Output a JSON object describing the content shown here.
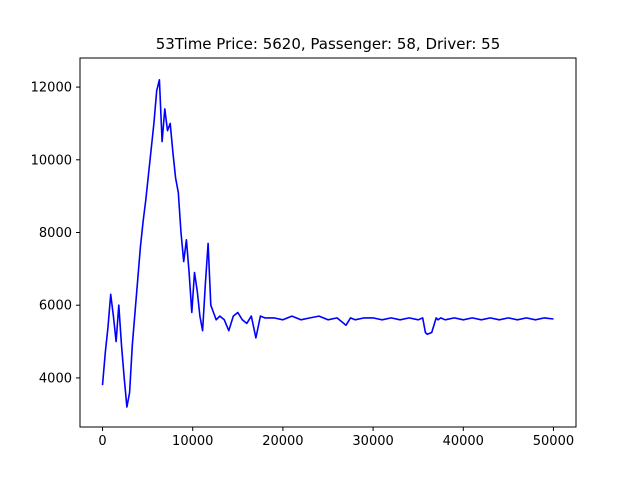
{
  "chart_data": {
    "type": "line",
    "title": "53Time Price: 5620, Passenger: 58, Driver: 55",
    "xlabel": "",
    "ylabel": "",
    "xlim": [
      -2500,
      52500
    ],
    "ylim": [
      2650,
      12800
    ],
    "xticks": [
      0,
      10000,
      20000,
      30000,
      40000,
      50000
    ],
    "xtick_labels": [
      "0",
      "10000",
      "20000",
      "30000",
      "40000",
      "50000"
    ],
    "yticks": [
      4000,
      6000,
      8000,
      10000,
      12000
    ],
    "ytick_labels": [
      "4000",
      "6000",
      "8000",
      "10000",
      "12000"
    ],
    "grid": false,
    "series": [
      {
        "color": "#0000ff",
        "x": [
          0,
          300,
          600,
          900,
          1200,
          1500,
          1800,
          2100,
          2400,
          2700,
          3000,
          3300,
          3600,
          3900,
          4200,
          4500,
          4800,
          5100,
          5400,
          5700,
          6000,
          6300,
          6600,
          6900,
          7200,
          7500,
          7800,
          8100,
          8400,
          8700,
          9000,
          9300,
          9600,
          9900,
          10200,
          10500,
          10800,
          11100,
          11400,
          11700,
          12000,
          12300,
          12600,
          13000,
          13500,
          14000,
          14500,
          15000,
          15500,
          16000,
          16500,
          17000,
          17500,
          18000,
          19000,
          20000,
          21000,
          22000,
          23000,
          24000,
          25000,
          26000,
          27000,
          27500,
          28000,
          29000,
          30000,
          31000,
          32000,
          33000,
          34000,
          35000,
          35500,
          35800,
          36000,
          36500,
          37000,
          37200,
          37500,
          38000,
          39000,
          40000,
          41000,
          42000,
          43000,
          44000,
          45000,
          46000,
          47000,
          48000,
          49000,
          50000
        ],
        "y": [
          3800,
          4700,
          5400,
          6300,
          5700,
          5000,
          6000,
          4900,
          4000,
          3200,
          3600,
          4900,
          5800,
          6700,
          7600,
          8300,
          8900,
          9600,
          10300,
          11000,
          11900,
          12200,
          10500,
          11400,
          10800,
          11000,
          10200,
          9500,
          9100,
          8000,
          7200,
          7800,
          6900,
          5800,
          6900,
          6400,
          5700,
          5300,
          6600,
          7700,
          6000,
          5800,
          5600,
          5700,
          5600,
          5300,
          5700,
          5800,
          5600,
          5500,
          5700,
          5100,
          5700,
          5650,
          5650,
          5600,
          5700,
          5600,
          5650,
          5700,
          5600,
          5650,
          5450,
          5650,
          5600,
          5650,
          5650,
          5600,
          5650,
          5600,
          5650,
          5600,
          5650,
          5250,
          5200,
          5250,
          5650,
          5600,
          5650,
          5600,
          5650,
          5600,
          5650,
          5600,
          5650,
          5600,
          5650,
          5600,
          5650,
          5600,
          5650,
          5620
        ]
      }
    ]
  }
}
